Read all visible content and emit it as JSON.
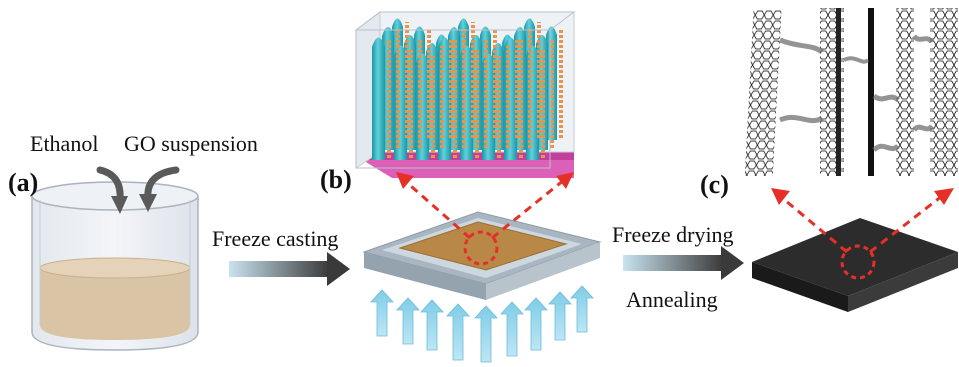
{
  "panels": {
    "a": "(a)",
    "b": "(b)",
    "c": "(c)"
  },
  "inputs": {
    "ethanol": "Ethanol",
    "go_suspension": "GO suspension"
  },
  "steps": {
    "freeze_casting": "Freeze casting",
    "freeze_drying": "Freeze drying",
    "annealing": "Annealing"
  },
  "colors": {
    "suspension": "#d9c4a6",
    "ice_column": "#2fb5c3",
    "go_sheet": "#e9944a",
    "substrate": "#d94fb0",
    "cold_arrow": "#8fd4ec",
    "callout": "#e53027",
    "aerogel": "#2c2c2c"
  }
}
